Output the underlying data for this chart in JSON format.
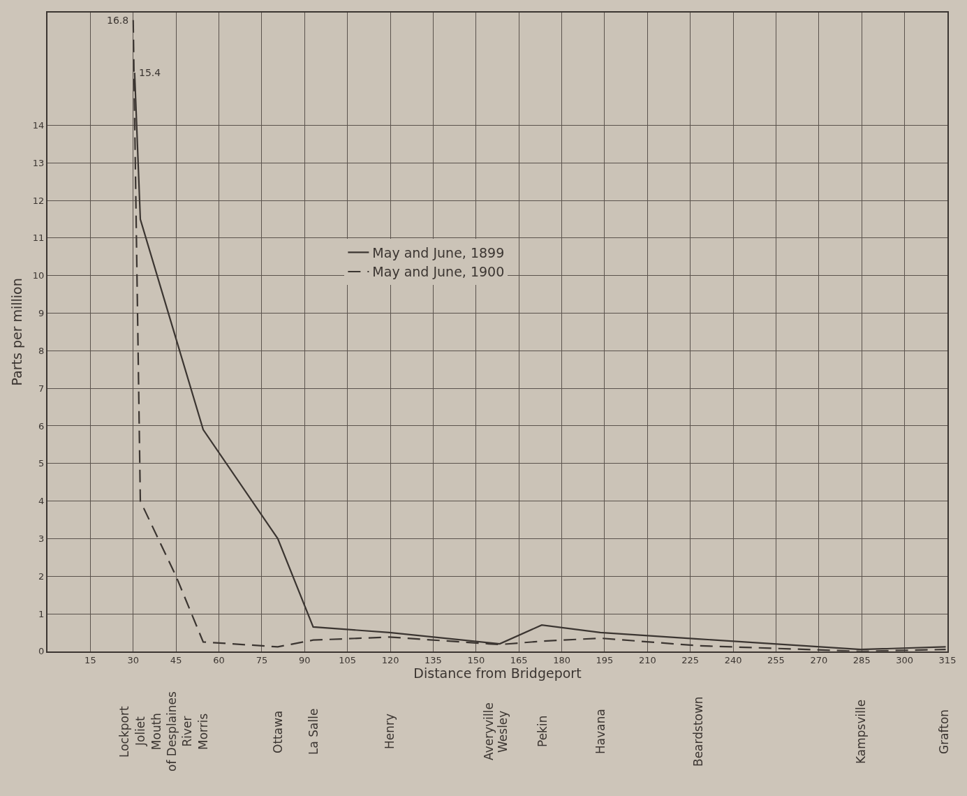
{
  "chart_data": {
    "type": "line",
    "xlabel": "Distance from Bridgeport",
    "ylabel": "Parts per million",
    "series": [
      {
        "name": "May and June, 1899",
        "color": "#3b3531",
        "line_style": "solid",
        "x": [
          30.5,
          32.5,
          54.5,
          80.6,
          93,
          119.7,
          158.3,
          173,
          193.5,
          227.7,
          284.6,
          314.4
        ],
        "values": [
          15.4,
          11.5,
          5.9,
          3.0,
          0.65,
          0.5,
          0.2,
          0.7,
          0.5,
          0.33,
          0.05,
          0.12
        ]
      },
      {
        "name": "May and June, 1900",
        "color": "#3b3531",
        "line_style": "dashed",
        "x": [
          30,
          32.5,
          45,
          54.5,
          80.6,
          93,
          119.7,
          154.4,
          158.3,
          173,
          193.5,
          227.7,
          284.6,
          314.4
        ],
        "values": [
          16.8,
          4.0,
          2.0,
          0.25,
          0.12,
          0.3,
          0.38,
          0.2,
          0.18,
          0.27,
          0.35,
          0.15,
          0.0,
          0.05
        ]
      }
    ],
    "xlim": [
      0,
      315
    ],
    "xticks": [
      15,
      30,
      45,
      60,
      75,
      90,
      105,
      120,
      135,
      150,
      165,
      180,
      195,
      210,
      225,
      240,
      255,
      270,
      285,
      300,
      315
    ],
    "ylim": [
      0,
      17
    ],
    "yticks": [
      0,
      1,
      2,
      3,
      4,
      5,
      6,
      7,
      8,
      9,
      10,
      11,
      12,
      13,
      14
    ],
    "grid": true,
    "legend": "center",
    "marker": "none",
    "annotations": [
      {
        "text": "16.8",
        "x": 30,
        "y": 16.8
      },
      {
        "text": "15.4",
        "x": 30.5,
        "y": 15.4
      },
      "Lockport",
      "Joliet",
      "Mouth\nof Desplaines\nRiver",
      "Morris",
      "Ottawa",
      "La Salle",
      "Henry",
      "Averyville",
      "Wesley",
      "Pekin",
      "Havana",
      "Beardstown",
      "Kampsville",
      "Grafton"
    ]
  }
}
